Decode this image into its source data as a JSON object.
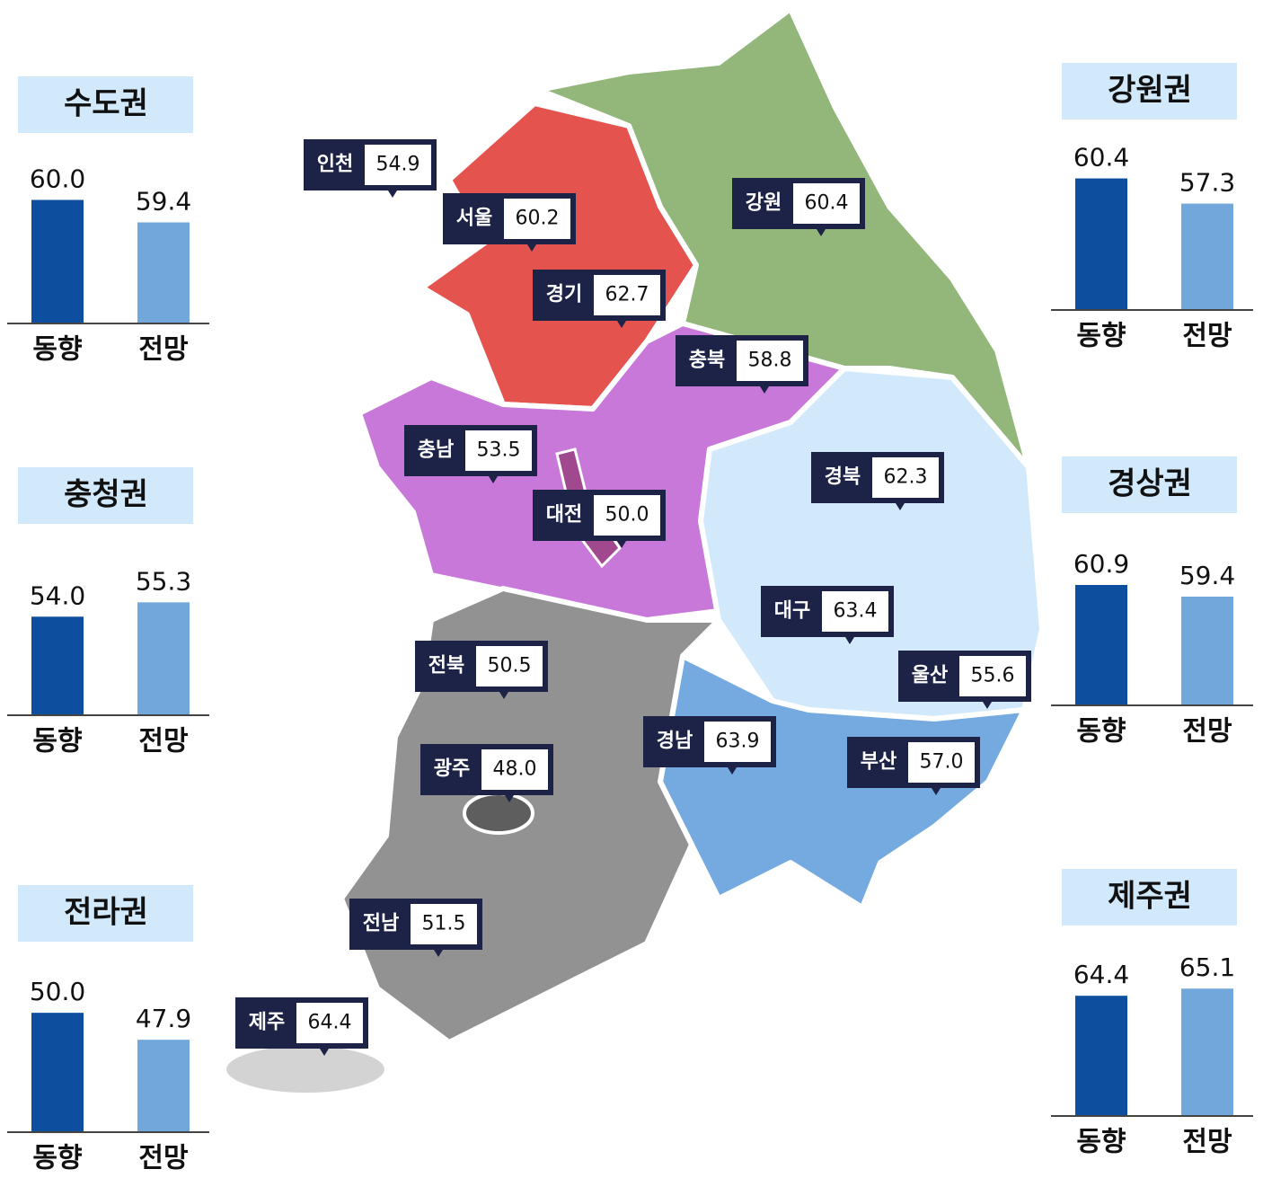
{
  "chart_data": [
    {
      "type": "bar",
      "title": "수도권",
      "categories": [
        "동향",
        "전망"
      ],
      "values": [
        60.0,
        59.4
      ],
      "value_labels": [
        "60.0",
        "59.4"
      ],
      "colors": [
        "#0d4e9e",
        "#72a7dc"
      ],
      "ylim": [
        56.7,
        60.54
      ]
    },
    {
      "type": "bar",
      "title": "충청권",
      "categories": [
        "동향",
        "전망"
      ],
      "values": [
        54.0,
        55.3
      ],
      "value_labels": [
        "54.0",
        "55.3"
      ],
      "colors": [
        "#0d4e9e",
        "#72a7dc"
      ],
      "ylim": [
        45.06,
        58.1
      ]
    },
    {
      "type": "bar",
      "title": "전라권",
      "categories": [
        "동향",
        "전망"
      ],
      "values": [
        50.0,
        47.9
      ],
      "value_labels": [
        "50.0",
        "47.9"
      ],
      "colors": [
        "#0d4e9e",
        "#72a7dc"
      ],
      "ylim": [
        40.7,
        51.9
      ]
    },
    {
      "type": "bar",
      "title": "강원권",
      "categories": [
        "동향",
        "전망"
      ],
      "values": [
        60.4,
        57.3
      ],
      "value_labels": [
        "60.4",
        "57.3"
      ],
      "colors": [
        "#0d4e9e",
        "#72a7dc"
      ],
      "ylim": [
        44.2,
        61.9
      ]
    },
    {
      "type": "bar",
      "title": "경상권",
      "categories": [
        "동향",
        "전망"
      ],
      "values": [
        60.9,
        59.4
      ],
      "value_labels": [
        "60.9",
        "59.4"
      ],
      "colors": [
        "#0d4e9e",
        "#72a7dc"
      ],
      "ylim": [
        45.44,
        63.9
      ]
    },
    {
      "type": "bar",
      "title": "제주권",
      "categories": [
        "동향",
        "전망"
      ],
      "values": [
        64.4,
        65.1
      ],
      "value_labels": [
        "64.4",
        "65.1"
      ],
      "colors": [
        "#0d4e9e",
        "#72a7dc"
      ],
      "ylim": [
        52.65,
        66.7
      ]
    }
  ],
  "map": {
    "labels": [
      {
        "name": "인천",
        "value": "54.9"
      },
      {
        "name": "서울",
        "value": "60.2"
      },
      {
        "name": "경기",
        "value": "62.7"
      },
      {
        "name": "강원",
        "value": "60.4"
      },
      {
        "name": "충북",
        "value": "58.8"
      },
      {
        "name": "충남",
        "value": "53.5"
      },
      {
        "name": "대전",
        "value": "50.0"
      },
      {
        "name": "경북",
        "value": "62.3"
      },
      {
        "name": "대구",
        "value": "63.4"
      },
      {
        "name": "울산",
        "value": "55.6"
      },
      {
        "name": "전북",
        "value": "50.5"
      },
      {
        "name": "경남",
        "value": "63.9"
      },
      {
        "name": "부산",
        "value": "57.0"
      },
      {
        "name": "광주",
        "value": "48.0"
      },
      {
        "name": "전남",
        "value": "51.5"
      },
      {
        "name": "제주",
        "value": "64.4"
      }
    ]
  }
}
